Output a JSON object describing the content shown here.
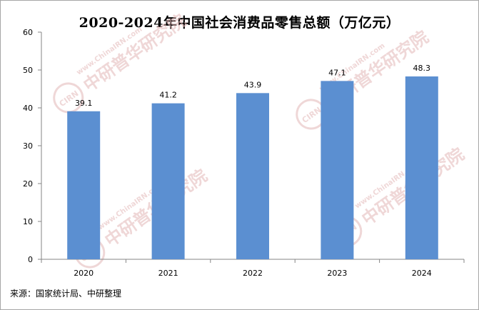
{
  "title": "2020-2024年中国社会消费品零售总额（万亿元）",
  "source": "来源：国家统计局、中研整理",
  "watermark": {
    "url_text": "www.ChinaIRN.com",
    "brand_text": "中研普华研究院",
    "logo_text": "CIRN"
  },
  "chart_data": {
    "type": "bar",
    "title": "2020-2024年中国社会消费品零售总额（万亿元）",
    "categories": [
      "2020",
      "2021",
      "2022",
      "2023",
      "2024"
    ],
    "values": [
      39.1,
      41.2,
      43.9,
      47.1,
      48.3
    ],
    "data_labels": [
      "39.1",
      "41.2",
      "43.9",
      "47.1",
      "48.3"
    ],
    "xlabel": "",
    "ylabel": "",
    "ylim": [
      0,
      60
    ],
    "yticks": [
      0,
      10,
      20,
      30,
      40,
      50,
      60
    ],
    "bar_color": "#5b8fd1",
    "grid": false,
    "legend": "none"
  },
  "colors": {
    "bar": "#5b8fd1",
    "axis": "#868686",
    "watermark": "#e3b7b7"
  }
}
